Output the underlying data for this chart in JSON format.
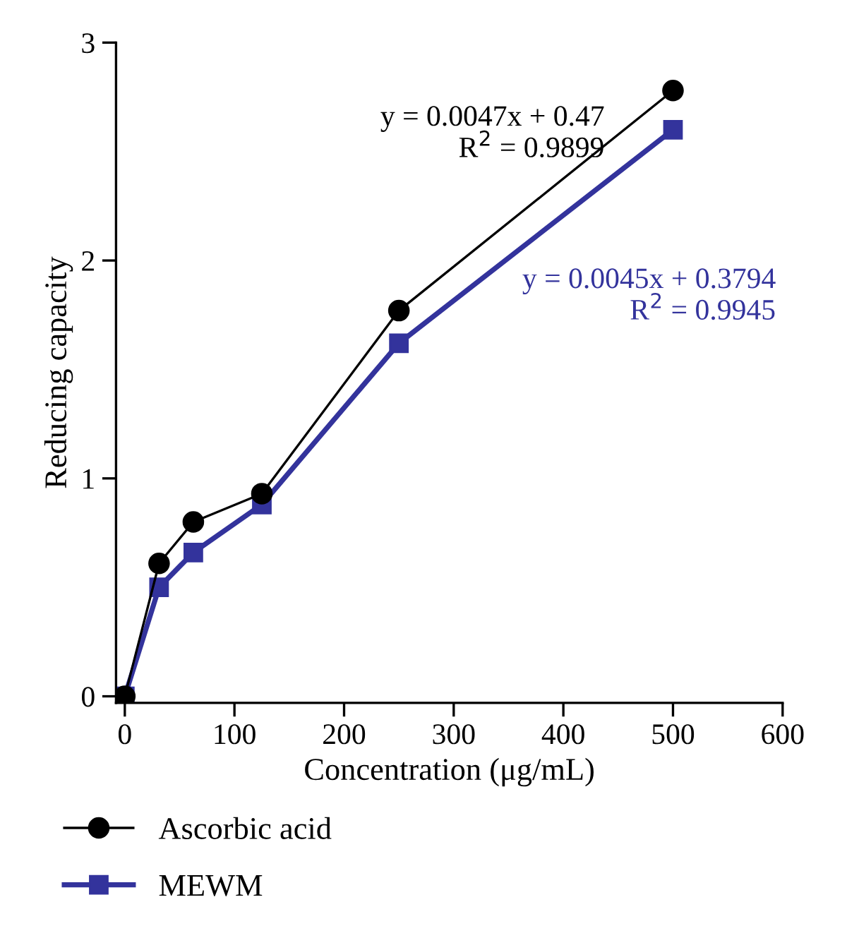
{
  "chart_data": {
    "type": "line",
    "xlabel": "Concentration (μg/mL)",
    "ylabel": "Reducing capacity",
    "x": [
      0,
      31.25,
      62.5,
      125,
      250,
      500
    ],
    "series": [
      {
        "name": "Ascorbic acid",
        "color": "#000000",
        "marker": "circle",
        "values": [
          0,
          0.61,
          0.8,
          0.93,
          1.77,
          2.78
        ]
      },
      {
        "name": "MEWM",
        "color": "#33339c",
        "marker": "square",
        "values": [
          0,
          0.5,
          0.66,
          0.88,
          1.62,
          2.6
        ]
      }
    ],
    "annotations": [
      "y = 0.0047x + 0.47\nR$^{2}$ = 0.9899",
      "y = 0.0045x + 0.3794\nR$^{2}$ = 0.9945"
    ],
    "xlim": [
      -8,
      600
    ],
    "ylim": [
      -0.03,
      3
    ],
    "xticks": [
      0,
      100,
      200,
      300,
      400,
      500,
      600
    ],
    "yticks": [
      0,
      1,
      2,
      3
    ],
    "grid": false,
    "legend": "bottom"
  }
}
